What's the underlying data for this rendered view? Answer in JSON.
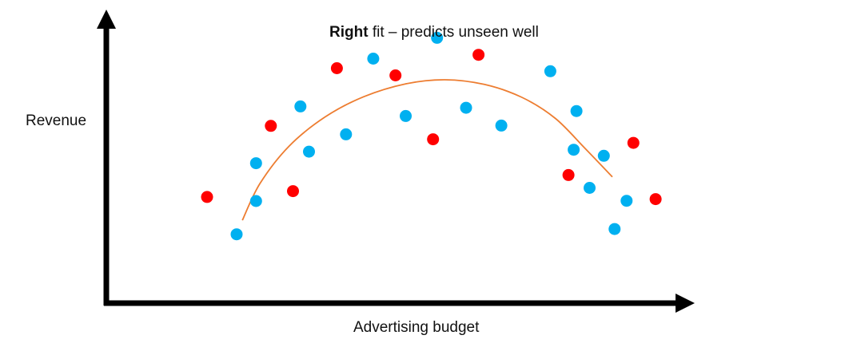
{
  "title": {
    "bold": "Right",
    "rest": " fit – predicts unseen well"
  },
  "xlabel": "Advertising budget",
  "ylabel": "Revenue",
  "colors": {
    "train": "#00b0f0",
    "test": "#ff0000",
    "fit": "#ed7d31",
    "axis": "#000000"
  },
  "chart_data": {
    "type": "scatter",
    "xlim": [
      0,
      100
    ],
    "ylim": [
      0,
      100
    ],
    "series": [
      {
        "color": "#00b0f0",
        "points": [
          [
            22.9,
            25.1
          ],
          [
            26.3,
            37.2
          ],
          [
            26.3,
            51.0
          ],
          [
            34.1,
            71.7
          ],
          [
            35.6,
            55.2
          ],
          [
            42.1,
            61.5
          ],
          [
            46.9,
            89.1
          ],
          [
            52.6,
            68.2
          ],
          [
            58.1,
            96.7
          ],
          [
            63.2,
            71.2
          ],
          [
            69.4,
            64.7
          ],
          [
            78.0,
            84.5
          ],
          [
            82.1,
            55.9
          ],
          [
            82.6,
            70.0
          ],
          [
            84.9,
            42.0
          ],
          [
            87.4,
            53.7
          ],
          [
            89.3,
            27.0
          ],
          [
            91.4,
            37.3
          ]
        ]
      },
      {
        "color": "#ff0000",
        "points": [
          [
            17.7,
            38.7
          ],
          [
            28.9,
            64.6
          ],
          [
            32.8,
            40.8
          ],
          [
            40.5,
            85.6
          ],
          [
            50.8,
            83.0
          ],
          [
            57.4,
            59.7
          ],
          [
            65.4,
            90.5
          ],
          [
            81.2,
            46.7
          ],
          [
            92.6,
            58.4
          ],
          [
            96.5,
            37.9
          ]
        ]
      }
    ],
    "curve": [
      [
        23.9,
        30.2
      ],
      [
        27.0,
        43.6
      ],
      [
        32.1,
        57.2
      ],
      [
        38.4,
        67.8
      ],
      [
        45.2,
        75.2
      ],
      [
        52.6,
        79.9
      ],
      [
        59.5,
        81.4
      ],
      [
        66.4,
        79.7
      ],
      [
        73.0,
        75.0
      ],
      [
        78.9,
        67.3
      ],
      [
        84.1,
        56.4
      ],
      [
        88.9,
        46.0
      ]
    ]
  }
}
